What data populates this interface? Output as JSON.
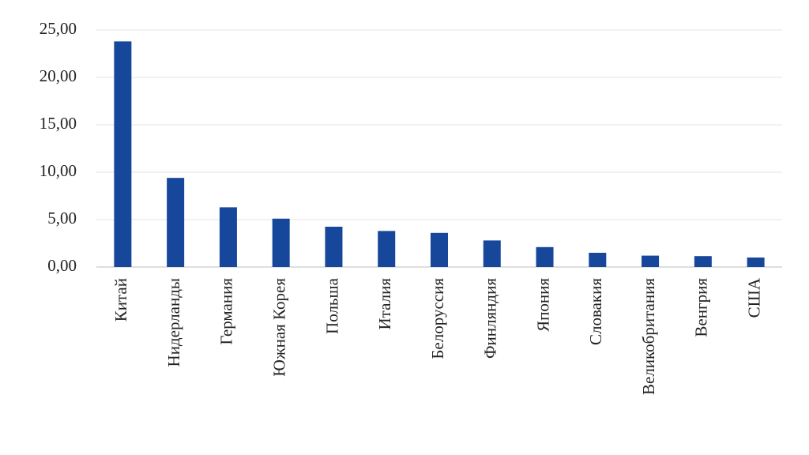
{
  "chart_data": {
    "type": "bar",
    "categories": [
      "Китай",
      "Нидерланды",
      "Германия",
      "Южная Корея",
      "Польша",
      "Италия",
      "Белоруссия",
      "Финляндия",
      "Япония",
      "Словакия",
      "Великобритания",
      "Венгрия",
      "США"
    ],
    "values": [
      23.8,
      9.4,
      6.3,
      5.1,
      4.25,
      3.8,
      3.6,
      2.8,
      2.1,
      1.5,
      1.2,
      1.15,
      1.0
    ],
    "color": "#17479a",
    "ylim": [
      0,
      25
    ],
    "yticks": [
      {
        "value": 0,
        "label": "0,00"
      },
      {
        "value": 5,
        "label": "5,00"
      },
      {
        "value": 10,
        "label": "10,00"
      },
      {
        "value": 15,
        "label": "15,00"
      },
      {
        "value": 20,
        "label": "20,00"
      },
      {
        "value": 25,
        "label": "25,00"
      }
    ],
    "grid": true
  }
}
